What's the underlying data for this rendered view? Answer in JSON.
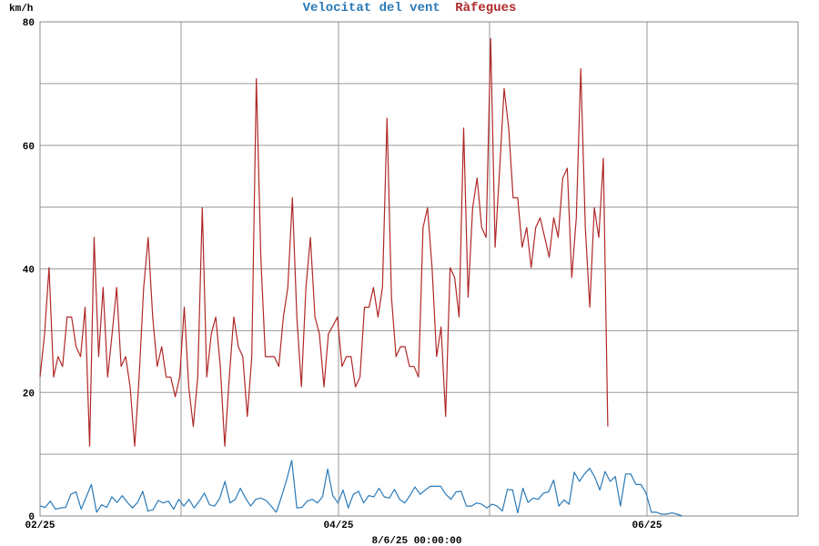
{
  "chart_data": {
    "type": "line",
    "title_series": [
      {
        "text": "Velocitat del vent",
        "color": "#2a7ab8"
      },
      {
        "text": "Ràfegues",
        "color": "#b02828"
      }
    ],
    "ylabel": "km/h",
    "xlabel": "8/6/25 00:00:00",
    "ylim": [
      0,
      80
    ],
    "yticks": [
      "0",
      "20",
      "40",
      "60",
      "80"
    ],
    "xticks": [
      "02/25",
      "04/25",
      "06/25"
    ],
    "grid": true,
    "series": [
      {
        "name": "Ràfegues",
        "color": "#b02828",
        "values": [
          22.5,
          29.5,
          40.2,
          22.5,
          25.8,
          24.2,
          32.2,
          32.2,
          27.4,
          25.8,
          33.8,
          11.3,
          45.1,
          25.8,
          37.0,
          22.5,
          29.5,
          37.0,
          24.2,
          25.8,
          20.9,
          11.3,
          22.5,
          37.0,
          45.1,
          32.2,
          24.2,
          27.4,
          22.5,
          22.5,
          19.3,
          22.5,
          33.8,
          20.9,
          14.5,
          22.5,
          49.9,
          22.5,
          29.5,
          32.2,
          24.2,
          11.3,
          22.5,
          32.2,
          27.4,
          25.8,
          16.1,
          25.8,
          70.8,
          42.0,
          25.8,
          25.8,
          25.8,
          24.2,
          32.2,
          37.0,
          51.5,
          32.2,
          20.9,
          37.0,
          45.1,
          32.2,
          29.5,
          20.9,
          29.5,
          30.8,
          32.2,
          24.2,
          25.8,
          25.8,
          20.9,
          22.5,
          33.8,
          33.8,
          37.0,
          32.2,
          37.0,
          64.4,
          35.4,
          25.8,
          27.4,
          27.4,
          24.2,
          24.2,
          22.5,
          46.7,
          49.9,
          40.2,
          25.8,
          30.6,
          16.1,
          40.2,
          38.6,
          32.2,
          62.8,
          35.4,
          49.9,
          54.7,
          46.7,
          45.1,
          77.3,
          43.5,
          56.3,
          69.2,
          62.8,
          51.5,
          51.5,
          43.5,
          46.7,
          40.2,
          46.7,
          48.3,
          45.1,
          41.9,
          48.3,
          45.1,
          54.7,
          56.3,
          38.6,
          48.3,
          72.4,
          46.7,
          33.8,
          49.9,
          45.1,
          57.9,
          14.5
        ],
        "x_end": 0.749
      },
      {
        "name": "Velocitat del vent",
        "color": "#2a7ab8",
        "values": [
          1.6,
          1.4,
          2.4,
          1.1,
          1.3,
          1.4,
          3.5,
          3.9,
          1.1,
          3.1,
          5.1,
          0.6,
          1.8,
          1.4,
          3.1,
          2.2,
          3.3,
          2.2,
          1.3,
          2.2,
          4.0,
          0.8,
          1.0,
          2.5,
          2.1,
          2.4,
          1.1,
          2.7,
          1.6,
          2.7,
          1.3,
          2.4,
          3.7,
          1.8,
          1.6,
          2.9,
          5.6,
          2.1,
          2.7,
          4.5,
          2.9,
          1.6,
          2.7,
          2.9,
          2.5,
          1.6,
          0.6,
          3.1,
          5.8,
          9.0,
          1.3,
          1.4,
          2.4,
          2.7,
          2.1,
          3.1,
          7.6,
          3.3,
          2.1,
          4.2,
          1.3,
          3.5,
          4.0,
          2.1,
          3.3,
          3.1,
          4.5,
          3.1,
          2.9,
          4.3,
          2.7,
          2.1,
          3.3,
          4.7,
          3.5,
          4.2,
          4.8,
          4.8,
          4.8,
          3.5,
          2.7,
          3.9,
          4.0,
          1.6,
          1.6,
          2.1,
          1.9,
          1.3,
          1.9,
          1.6,
          0.8,
          4.3,
          4.2,
          0.5,
          4.5,
          2.2,
          2.9,
          2.7,
          3.7,
          3.9,
          5.8,
          1.6,
          2.6,
          1.9,
          7.1,
          5.6,
          6.8,
          7.7,
          6.3,
          4.2,
          7.2,
          5.6,
          6.4,
          1.6,
          6.8,
          6.8,
          5.1,
          5.1,
          3.7,
          0.6,
          0.6,
          0.3,
          0.3,
          0.5,
          0.3,
          0.0
        ],
        "x_end": 0.847
      }
    ]
  }
}
